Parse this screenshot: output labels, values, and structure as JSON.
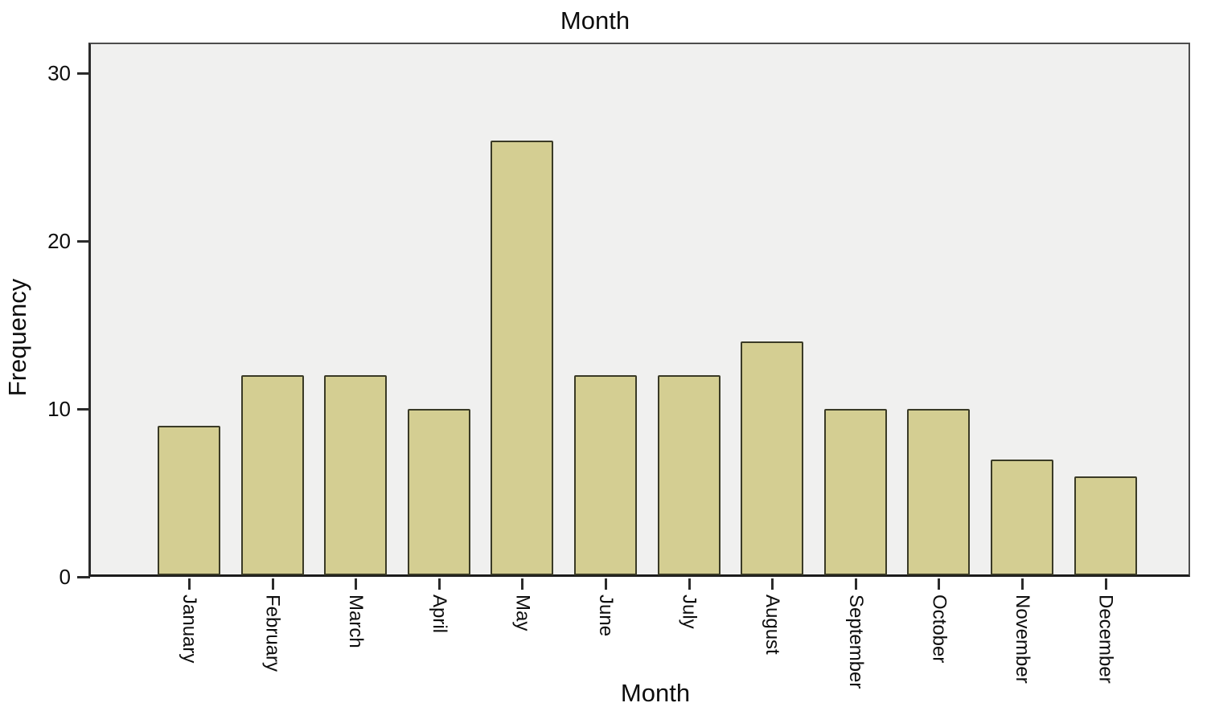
{
  "chart_data": {
    "type": "bar",
    "title": "Month",
    "xlabel": "Month",
    "ylabel": "Frequency",
    "categories": [
      "January",
      "February",
      "March",
      "April",
      "May",
      "June",
      "July",
      "August",
      "September",
      "October",
      "November",
      "December"
    ],
    "values": [
      9,
      12,
      12,
      10,
      26,
      12,
      12,
      14,
      10,
      10,
      7,
      6
    ],
    "yticks": [
      0,
      10,
      20,
      30
    ],
    "ylim": [
      0,
      31.7
    ],
    "grid": false,
    "legend": false,
    "colors": {
      "bar_fill": "#d4ce92",
      "bar_border": "#3a3a26",
      "plot_bg": "#f0f0ef",
      "plot_border": "#4d4d4d",
      "axis_text": "#0d0d0d",
      "page_bg": "#ffffff"
    }
  }
}
